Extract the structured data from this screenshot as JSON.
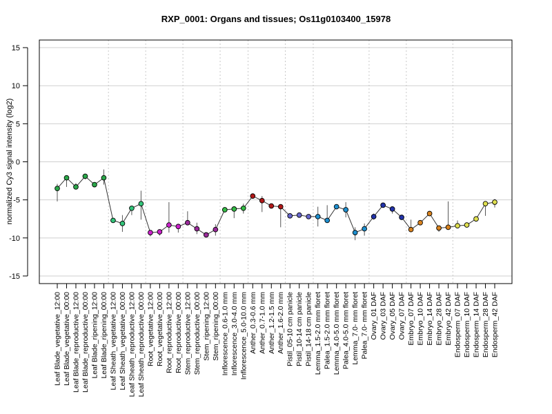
{
  "chart_data": {
    "type": "line",
    "title": "RXP_0001: Organs and tissues; Os11g0103400_15978",
    "ylabel": "normalized Cy3 signal intensity (log2)",
    "xlabel": "",
    "ylim": [
      -16,
      16
    ],
    "yticks": [
      -15,
      -10,
      -5,
      0,
      5,
      10,
      15
    ],
    "grid": "horizontal",
    "categories": [
      "Leaf Blade_vegetative_12:00",
      "Leaf Blade_vegetative_00:00",
      "Leaf Blade_reproductive_12:00",
      "Leaf Blade_reproductive_00:00",
      "Leaf Blade_ripening_12:00",
      "Leaf Blade_ripening_00:00",
      "Leaf Sheath_vegetative_12:00",
      "Leaf Sheath_vegetative_00:00",
      "Leaf Sheath_reproductive_12:00",
      "Leaf Sheath_reproductive_00:00",
      "Root_vegetative_12:00",
      "Root_vegetative_00:00",
      "Root_reproductive_12:00",
      "Root_reproductive_00:00",
      "Stem_reproductive_12:00",
      "Stem_reproductive_00:00",
      "Stem_ripening_12:00",
      "Stem_ripening_00:00",
      "Inflorescence_0.6-1.0 mm",
      "Inflorescence_3.0-4.0 mm",
      "Inflorescence_5.0-10.0 mm",
      "Anther_0.3-0.6 mm",
      "Anther_0.7-1.0 mm",
      "Anther_1.2-1.5 mm",
      "Anther_1.6-2.0 mm",
      "Pistil_05-10 cm panicle",
      "Pistil_10-14 cm panicle",
      "Pistil_14-18 cm panicle",
      "Lemma_1.5-2.0 mm floret",
      "Palea_1.5-2.0 mm floret",
      "Lemma_4.0-5.0 mm floret",
      "Palea_4.0-5.0 mm floret",
      "Lemma_7.0- mm floret",
      "Palea_7.0- mm floret",
      "Ovary_01 DAF",
      "Ovary_03 DAF",
      "Ovary_05 DAF",
      "Ovary_07 DAF",
      "Embryo_07 DAF",
      "Embryo_10 DAF",
      "Embryo_14 DAF",
      "Embryo_28 DAF",
      "Embryo_42 DAF",
      "Endosperm_07 DAF",
      "Endosperm_10 DAF",
      "Endosperm_14 DAF",
      "Endosperm_28 DAF",
      "Endosperm_42 DAF"
    ],
    "values": [
      -3.5,
      -2.1,
      -3.3,
      -1.9,
      -3.0,
      -2.1,
      -7.7,
      -8.1,
      -6.1,
      -5.5,
      -9.3,
      -9.2,
      -8.3,
      -8.5,
      -8.0,
      -8.8,
      -9.6,
      -8.9,
      -6.3,
      -6.2,
      -6.1,
      -4.5,
      -5.1,
      -5.8,
      -5.9,
      -7.1,
      -7.0,
      -7.2,
      -7.2,
      -7.7,
      -5.9,
      -6.3,
      -9.3,
      -8.8,
      -7.2,
      -5.7,
      -6.2,
      -7.3,
      -8.9,
      -8.0,
      -6.8,
      -8.7,
      -8.6,
      -8.4,
      -8.3,
      -7.5,
      -5.5,
      -5.3
    ],
    "error_low": [
      -5.2,
      -3.3,
      -3.3,
      -2.3,
      -3.0,
      -3.0,
      -7.7,
      -9.2,
      -7.0,
      -7.6,
      -9.8,
      -9.7,
      -9.3,
      -9.3,
      -8.3,
      -9.5,
      -9.6,
      -9.7,
      -6.3,
      -7.4,
      -6.8,
      -4.5,
      -6.6,
      -6.0,
      -8.6,
      -7.4,
      -7.0,
      -7.2,
      -8.5,
      -7.7,
      -5.9,
      -7.3,
      -10.3,
      -9.7,
      -7.6,
      -5.7,
      -6.8,
      -7.3,
      -9.1,
      -8.0,
      -6.8,
      -9.2,
      -8.6,
      -8.4,
      -8.3,
      -7.5,
      -7.1,
      -6.0
    ],
    "error_high": [
      -2.9,
      -2.1,
      -2.8,
      -1.7,
      -3.0,
      -1.0,
      -7.7,
      -7.0,
      -5.9,
      -3.8,
      -9.1,
      -9.2,
      -5.3,
      -8.2,
      -6.5,
      -8.0,
      -9.4,
      -8.2,
      -6.3,
      -6.1,
      -5.5,
      -4.3,
      -4.5,
      -5.6,
      -5.8,
      -6.9,
      -6.9,
      -7.0,
      -5.9,
      -5.7,
      -5.9,
      -5.3,
      -8.6,
      -8.1,
      -6.8,
      -5.7,
      -6.0,
      -7.3,
      -7.6,
      -8.0,
      -6.6,
      -8.7,
      -5.2,
      -7.7,
      -8.3,
      -7.5,
      -5.2,
      -4.9
    ],
    "groups": [
      {
        "name": "Leaf Blade",
        "start": 0,
        "end": 5,
        "color": "#2ba84a"
      },
      {
        "name": "Leaf Sheath",
        "start": 6,
        "end": 9,
        "color": "#33c47a"
      },
      {
        "name": "Root",
        "start": 10,
        "end": 13,
        "color": "#cc22cc"
      },
      {
        "name": "Stem",
        "start": 14,
        "end": 17,
        "color": "#9a2a9a"
      },
      {
        "name": "Inflorescence",
        "start": 18,
        "end": 20,
        "color": "#33bb44"
      },
      {
        "name": "Anther",
        "start": 21,
        "end": 24,
        "color": "#b01818"
      },
      {
        "name": "Pistil",
        "start": 25,
        "end": 27,
        "color": "#6666cc"
      },
      {
        "name": "Lemma/Palea",
        "start": 28,
        "end": 33,
        "color": "#1e8fcf"
      },
      {
        "name": "Ovary",
        "start": 34,
        "end": 37,
        "color": "#2233aa"
      },
      {
        "name": "Embryo",
        "start": 38,
        "end": 42,
        "color": "#d9831f"
      },
      {
        "name": "Endosperm",
        "start": 43,
        "end": 47,
        "color": "#e0e050"
      }
    ]
  }
}
